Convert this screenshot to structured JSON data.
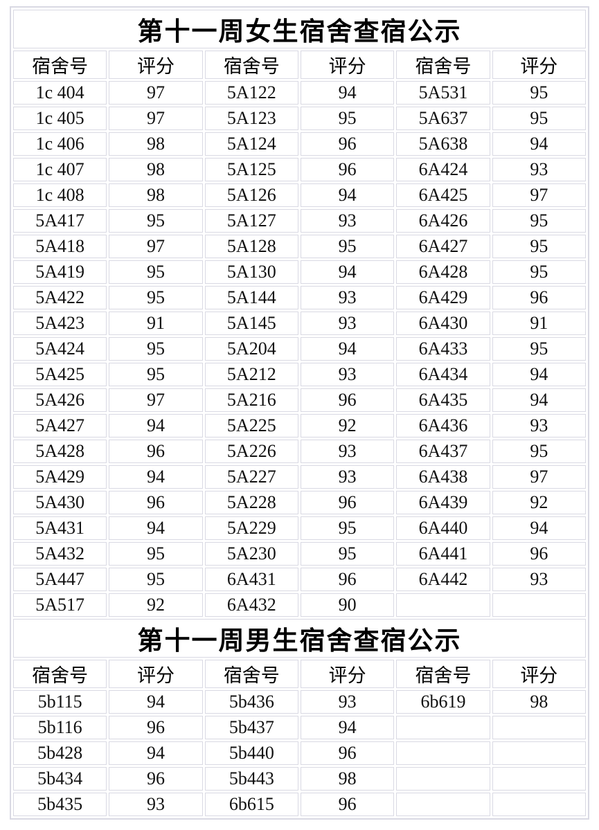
{
  "page": {
    "background_color": "#ffffff",
    "grid_border_color": "#d9d9e3",
    "text_color": "#111111"
  },
  "sections": [
    {
      "id": "female",
      "title": "第十一周女生宿舍查宿公示",
      "headers": [
        "宿舍号",
        "评分",
        "宿舍号",
        "评分",
        "宿舍号",
        "评分"
      ],
      "rows": [
        [
          "1c 404",
          "97",
          "5A122",
          "94",
          "5A531",
          "95"
        ],
        [
          "1c 405",
          "97",
          "5A123",
          "95",
          "5A637",
          "95"
        ],
        [
          "1c 406",
          "98",
          "5A124",
          "96",
          "5A638",
          "94"
        ],
        [
          "1c 407",
          "98",
          "5A125",
          "96",
          "6A424",
          "93"
        ],
        [
          "1c 408",
          "98",
          "5A126",
          "94",
          "6A425",
          "97"
        ],
        [
          "5A417",
          "95",
          "5A127",
          "93",
          "6A426",
          "95"
        ],
        [
          "5A418",
          "97",
          "5A128",
          "95",
          "6A427",
          "95"
        ],
        [
          "5A419",
          "95",
          "5A130",
          "94",
          "6A428",
          "95"
        ],
        [
          "5A422",
          "95",
          "5A144",
          "93",
          "6A429",
          "96"
        ],
        [
          "5A423",
          "91",
          "5A145",
          "93",
          "6A430",
          "91"
        ],
        [
          "5A424",
          "95",
          "5A204",
          "94",
          "6A433",
          "95"
        ],
        [
          "5A425",
          "95",
          "5A212",
          "93",
          "6A434",
          "94"
        ],
        [
          "5A426",
          "97",
          "5A216",
          "96",
          "6A435",
          "94"
        ],
        [
          "5A427",
          "94",
          "5A225",
          "92",
          "6A436",
          "93"
        ],
        [
          "5A428",
          "96",
          "5A226",
          "93",
          "6A437",
          "95"
        ],
        [
          "5A429",
          "94",
          "5A227",
          "93",
          "6A438",
          "97"
        ],
        [
          "5A430",
          "96",
          "5A228",
          "96",
          "6A439",
          "92"
        ],
        [
          "5A431",
          "94",
          "5A229",
          "95",
          "6A440",
          "94"
        ],
        [
          "5A432",
          "95",
          "5A230",
          "95",
          "6A441",
          "96"
        ],
        [
          "5A447",
          "95",
          "6A431",
          "96",
          "6A442",
          "93"
        ],
        [
          "5A517",
          "92",
          "6A432",
          "90",
          "",
          ""
        ]
      ]
    },
    {
      "id": "male",
      "title": "第十一周男生宿舍查宿公示",
      "headers": [
        "宿舍号",
        "评分",
        "宿舍号",
        "评分",
        "宿舍号",
        "评分"
      ],
      "rows": [
        [
          "5b115",
          "94",
          "5b436",
          "93",
          "6b619",
          "98"
        ],
        [
          "5b116",
          "96",
          "5b437",
          "94",
          "",
          ""
        ],
        [
          "5b428",
          "94",
          "5b440",
          "96",
          "",
          ""
        ],
        [
          "5b434",
          "96",
          "5b443",
          "98",
          "",
          ""
        ],
        [
          "5b435",
          "93",
          "6b615",
          "96",
          "",
          ""
        ]
      ]
    }
  ]
}
